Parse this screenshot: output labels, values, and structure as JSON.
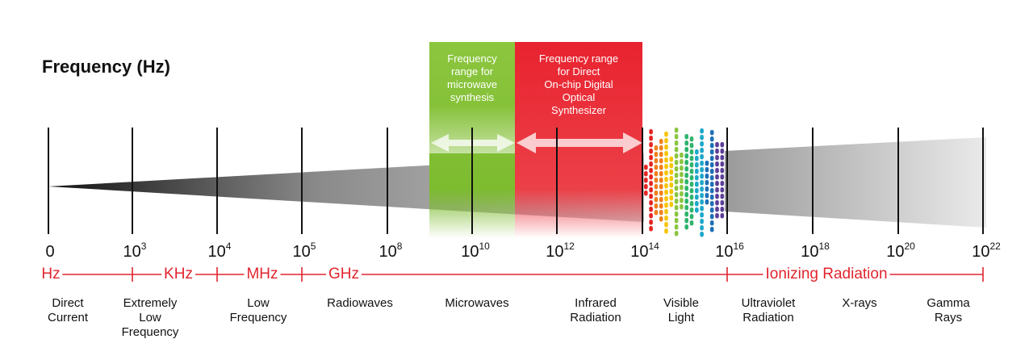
{
  "title": "Frequency (Hz)",
  "microwave_box": {
    "text": "Frequency range for microwave synthesis",
    "lines": [
      "Frequency",
      "range for",
      "microwave",
      "synthesis"
    ]
  },
  "optical_box": {
    "text": "Frequency range for Direct On-chip Digital Optical Synthesizer",
    "lines": [
      "Frequency range",
      "for Direct",
      "On-chip Digital",
      "Optical",
      "Synthesizer"
    ]
  },
  "ticks": [
    {
      "base": "0",
      "exp": ""
    },
    {
      "base": "10",
      "exp": "3"
    },
    {
      "base": "10",
      "exp": "4"
    },
    {
      "base": "10",
      "exp": "5"
    },
    {
      "base": "10",
      "exp": "8"
    },
    {
      "base": "10",
      "exp": "10"
    },
    {
      "base": "10",
      "exp": "12"
    },
    {
      "base": "10",
      "exp": "14"
    },
    {
      "base": "10",
      "exp": "16"
    },
    {
      "base": "10",
      "exp": "18"
    },
    {
      "base": "10",
      "exp": "20"
    },
    {
      "base": "10",
      "exp": "22"
    }
  ],
  "bands": [
    "Hz",
    "KHz",
    "MHz",
    "GHz",
    "Ionizing Radiation"
  ],
  "categories": [
    {
      "name": "Direct Current",
      "lines": [
        "Direct",
        "Current"
      ]
    },
    {
      "name": "Extremely Low Frequency",
      "lines": [
        "Extremely",
        "Low",
        "Frequency"
      ]
    },
    {
      "name": "Low Frequency",
      "lines": [
        "Low",
        "Frequency"
      ]
    },
    {
      "name": "Radiowaves",
      "lines": [
        "Radiowaves"
      ]
    },
    {
      "name": "Microwaves",
      "lines": [
        "Microwaves"
      ]
    },
    {
      "name": "Infrared Radiation",
      "lines": [
        "Infrared",
        "Radiation"
      ]
    },
    {
      "name": "Visible Light",
      "lines": [
        "Visible",
        "Light"
      ]
    },
    {
      "name": "Ultraviolet Radiation",
      "lines": [
        "Ultraviolet",
        "Radiation"
      ]
    },
    {
      "name": "X-rays",
      "lines": [
        "X-rays"
      ]
    },
    {
      "name": "Gamma Rays",
      "lines": [
        "Gamma",
        "Rays"
      ]
    }
  ],
  "colors": {
    "accent_red": "#e0252e",
    "microwave_green": "#7dbb2f",
    "optical_red": "#e8232f",
    "spectrum": [
      "#e52421",
      "#f07f1c",
      "#f7c400",
      "#8bc53f",
      "#2fb36b",
      "#1aa7c9",
      "#1d6fb8",
      "#5b3e98"
    ]
  }
}
